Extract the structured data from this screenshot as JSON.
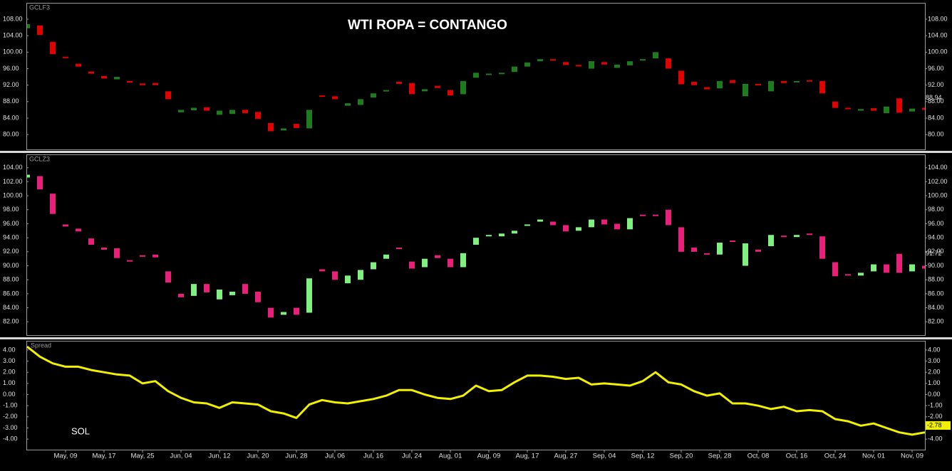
{
  "chart_data": [
    {
      "type": "candlestick",
      "name": "GCLF3",
      "title": "WTI ROPA = CONTANGO",
      "up_color": "#1e7b1e",
      "down_color": "#e00000",
      "open": [
        105.8,
        106.5,
        102.5,
        98.9,
        97.2,
        95.3,
        94.2,
        93.4,
        93.0,
        92.4,
        92.5,
        90.5,
        85.4,
        85.9,
        86.6,
        84.8,
        85.0,
        86.0,
        85.5,
        82.8,
        81.0,
        82.6,
        81.5,
        89.5,
        89.3,
        87.0,
        87.2,
        89.0,
        90.5,
        92.8,
        92.5,
        90.5,
        91.8,
        90.8,
        89.8,
        93.8,
        94.5,
        94.7,
        95.2,
        96.5,
        97.8,
        98.3,
        97.6,
        96.9,
        96.0,
        97.6,
        96.2,
        96.8,
        98.0,
        98.5,
        98.5,
        95.5,
        92.8,
        91.5,
        91.2,
        93.2,
        89.3,
        92.3,
        90.5,
        93.0,
        92.8,
        93.2,
        93.0,
        88.0,
        86.5,
        85.8,
        86.4,
        85.2,
        88.8,
        85.6,
        86.5
      ],
      "close": [
        106.8,
        104.2,
        99.5,
        98.6,
        96.5,
        94.8,
        93.6,
        94.0,
        92.6,
        92.0,
        92.0,
        88.6,
        86.0,
        86.5,
        85.8,
        85.8,
        86.0,
        85.2,
        83.8,
        80.8,
        81.5,
        81.6,
        86.0,
        89.3,
        88.6,
        87.6,
        88.6,
        90.0,
        90.8,
        92.3,
        89.8,
        91.0,
        91.3,
        89.5,
        93.0,
        95.0,
        94.8,
        95.0,
        96.5,
        97.5,
        98.3,
        98.0,
        96.9,
        96.7,
        97.8,
        97.0,
        97.0,
        97.8,
        98.3,
        100.0,
        96.0,
        92.2,
        92.0,
        91.0,
        93.0,
        92.5,
        92.3,
        92.0,
        93.0,
        92.5,
        93.0,
        93.0,
        90.0,
        86.5,
        86.2,
        86.2,
        85.8,
        86.8,
        85.3,
        86.3,
        86.0
      ],
      "last_value": 88.94,
      "ylim": [
        76.4,
        111.8
      ],
      "yticks": [
        {
          "value": 80,
          "label": "80.00"
        },
        {
          "value": 84,
          "label": "84.00"
        },
        {
          "value": 88,
          "label": "88.00"
        },
        {
          "value": 92,
          "label": "92.00"
        },
        {
          "value": 96,
          "label": "96.00"
        },
        {
          "value": 100,
          "label": "100.00"
        },
        {
          "value": 104,
          "label": "104.00"
        },
        {
          "value": 108,
          "label": "108.00"
        }
      ]
    },
    {
      "type": "candlestick",
      "name": "GCLZ3",
      "up_color": "#80f080",
      "down_color": "#e8207a",
      "open": [
        102.6,
        102.8,
        100.3,
        95.9,
        95.3,
        93.9,
        92.6,
        92.5,
        90.8,
        91.5,
        91.6,
        89.2,
        86.0,
        85.7,
        87.4,
        85.2,
        85.8,
        87.4,
        86.3,
        84.0,
        83.0,
        84.0,
        83.3,
        89.5,
        89.2,
        87.5,
        88.0,
        89.5,
        91.0,
        92.6,
        90.6,
        89.8,
        91.5,
        91.0,
        89.8,
        93.0,
        94.3,
        94.2,
        94.6,
        95.7,
        96.3,
        96.3,
        95.8,
        95.0,
        95.5,
        96.6,
        96.0,
        95.2,
        97.3,
        97.3,
        98.0,
        95.5,
        92.6,
        91.8,
        91.6,
        93.6,
        90.0,
        92.3,
        92.8,
        94.3,
        94.1,
        94.6,
        94.2,
        90.5,
        88.8,
        88.6,
        89.2,
        90.2,
        91.7,
        89.2,
        90.0
      ],
      "close": [
        103.0,
        100.9,
        97.4,
        95.6,
        94.9,
        93.0,
        92.3,
        91.1,
        90.6,
        91.3,
        91.2,
        87.6,
        85.5,
        87.4,
        86.2,
        86.6,
        86.3,
        86.0,
        84.8,
        82.6,
        83.4,
        83.0,
        88.2,
        89.2,
        88.0,
        88.6,
        89.4,
        90.5,
        91.6,
        92.4,
        89.6,
        91.0,
        91.1,
        89.8,
        91.8,
        94.0,
        94.4,
        94.6,
        95.0,
        95.9,
        96.6,
        95.8,
        94.9,
        95.5,
        96.6,
        95.9,
        95.2,
        96.8,
        97.1,
        97.1,
        95.8,
        92.0,
        92.0,
        91.6,
        93.3,
        93.5,
        93.2,
        92.0,
        94.4,
        94.1,
        94.4,
        94.4,
        91.0,
        88.5,
        88.6,
        89.0,
        90.2,
        89.0,
        89.0,
        90.2,
        89.6
      ],
      "last_value": 91.72,
      "ylim": [
        80.1,
        105.8
      ],
      "yticks": [
        {
          "value": 82,
          "label": "82.00"
        },
        {
          "value": 84,
          "label": "84.00"
        },
        {
          "value": 86,
          "label": "86.00"
        },
        {
          "value": 88,
          "label": "88.00"
        },
        {
          "value": 90,
          "label": "90.00"
        },
        {
          "value": 92,
          "label": "92.00"
        },
        {
          "value": 94,
          "label": "94.00"
        },
        {
          "value": 96,
          "label": "96.00"
        },
        {
          "value": 98,
          "label": "98.00"
        },
        {
          "value": 100,
          "label": "100.00"
        },
        {
          "value": 102,
          "label": "102.00"
        },
        {
          "value": 104,
          "label": "104.00"
        }
      ]
    },
    {
      "type": "line",
      "name": "Spread",
      "annotation": "SOL",
      "color": "#f0f000",
      "categories": [
        null,
        null,
        null,
        "May, 09",
        null,
        null,
        "May, 17",
        null,
        null,
        "May, 25",
        null,
        null,
        "Jun, 04",
        null,
        null,
        "Jun, 12",
        null,
        null,
        "Jun, 20",
        null,
        null,
        "Jun, 28",
        null,
        null,
        "Jul, 06",
        null,
        null,
        "Jul, 16",
        null,
        null,
        "Jul, 24",
        null,
        null,
        "Aug, 01",
        null,
        null,
        "Aug, 09",
        null,
        null,
        "Aug, 17",
        null,
        null,
        "Aug, 27",
        null,
        null,
        "Sep, 04",
        null,
        null,
        "Sep, 12",
        null,
        null,
        "Sep, 20",
        null,
        null,
        "Sep, 28",
        null,
        null,
        "Oct, 08",
        null,
        null,
        "Oct, 16",
        null,
        null,
        "Oct, 24",
        null,
        null,
        "Nov, 01",
        null,
        null,
        "Nov, 09",
        null
      ],
      "values": [
        4.3,
        3.4,
        2.8,
        2.5,
        2.5,
        2.2,
        2.0,
        1.8,
        1.7,
        1.0,
        1.2,
        0.3,
        -0.3,
        -0.7,
        -0.8,
        -1.2,
        -0.7,
        -0.8,
        -0.9,
        -1.5,
        -1.7,
        -2.1,
        -0.9,
        -0.5,
        -0.7,
        -0.8,
        -0.6,
        -0.4,
        -0.1,
        0.4,
        0.4,
        0.0,
        -0.3,
        -0.4,
        -0.1,
        0.8,
        0.3,
        0.4,
        1.1,
        1.7,
        1.7,
        1.6,
        1.4,
        1.5,
        0.9,
        1.0,
        0.9,
        0.8,
        1.2,
        2.0,
        1.1,
        0.9,
        0.3,
        -0.1,
        0.1,
        -0.8,
        -0.8,
        -1.0,
        -1.3,
        -1.1,
        -1.5,
        -1.4,
        -1.5,
        -2.2,
        -2.4,
        -2.8,
        -2.6,
        -3.0,
        -3.4,
        -3.6,
        -3.4
      ],
      "last_value": -2.78,
      "ylim": [
        -4.95,
        4.76
      ],
      "yticks": [
        {
          "value": -4,
          "label": "-4.00"
        },
        {
          "value": -3,
          "label": "-3.00"
        },
        {
          "value": -2,
          "label": "-2.00"
        },
        {
          "value": -1,
          "label": "-1.00"
        },
        {
          "value": 0,
          "label": "0.00"
        },
        {
          "value": 1,
          "label": "1.00"
        },
        {
          "value": 2,
          "label": "2.00"
        },
        {
          "value": 3,
          "label": "3.00"
        },
        {
          "value": 4,
          "label": "4.00"
        }
      ]
    }
  ]
}
